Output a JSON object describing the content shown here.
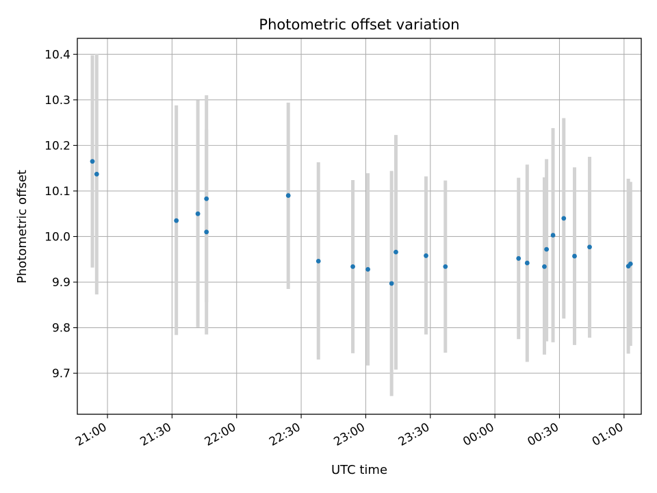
{
  "chart_data": {
    "type": "scatter",
    "title": "Photometric offset variation",
    "xlabel": "UTC time",
    "ylabel": "Photometric offset",
    "x_tick_labels": [
      "21:00",
      "21:30",
      "22:00",
      "22:30",
      "23:00",
      "23:30",
      "00:00",
      "00:30",
      "01:00"
    ],
    "y_ticks": [
      9.7,
      9.8,
      9.9,
      10.0,
      10.1,
      10.2,
      10.3,
      10.4
    ],
    "y_tick_labels": [
      "9.7",
      "9.8",
      "9.9",
      "10.0",
      "10.1",
      "10.2",
      "10.3",
      "10.4"
    ],
    "xlim": [
      "20:46",
      "01:08"
    ],
    "ylim": [
      9.61,
      10.435
    ],
    "grid": true,
    "point_color": "#1f77b4",
    "errorbar_color": "#d3d3d3",
    "points": [
      {
        "x": "20:53",
        "y": 10.165,
        "ylow": 9.932,
        "yhigh": 10.398
      },
      {
        "x": "20:55",
        "y": 10.137,
        "ylow": 9.873,
        "yhigh": 10.401
      },
      {
        "x": "21:32",
        "y": 10.035,
        "ylow": 9.784,
        "yhigh": 10.288
      },
      {
        "x": "21:42",
        "y": 10.05,
        "ylow": 9.801,
        "yhigh": 10.299
      },
      {
        "x": "21:46",
        "y": 10.01,
        "ylow": 9.785,
        "yhigh": 10.235
      },
      {
        "x": "21:46",
        "y": 10.083,
        "ylow": 9.856,
        "yhigh": 10.31
      },
      {
        "x": "22:24",
        "y": 10.09,
        "ylow": 9.885,
        "yhigh": 10.294
      },
      {
        "x": "22:38",
        "y": 9.946,
        "ylow": 9.73,
        "yhigh": 10.163
      },
      {
        "x": "22:54",
        "y": 9.934,
        "ylow": 9.744,
        "yhigh": 10.124
      },
      {
        "x": "23:01",
        "y": 9.928,
        "ylow": 9.717,
        "yhigh": 10.139
      },
      {
        "x": "23:12",
        "y": 9.897,
        "ylow": 9.65,
        "yhigh": 10.144
      },
      {
        "x": "23:14",
        "y": 9.966,
        "ylow": 9.708,
        "yhigh": 10.223
      },
      {
        "x": "23:28",
        "y": 9.958,
        "ylow": 9.785,
        "yhigh": 10.132
      },
      {
        "x": "23:37",
        "y": 9.934,
        "ylow": 9.745,
        "yhigh": 10.123
      },
      {
        "x": "00:11",
        "y": 9.952,
        "ylow": 9.775,
        "yhigh": 10.129
      },
      {
        "x": "00:15",
        "y": 9.942,
        "ylow": 9.725,
        "yhigh": 10.158
      },
      {
        "x": "00:23",
        "y": 9.934,
        "ylow": 9.741,
        "yhigh": 10.13
      },
      {
        "x": "00:24",
        "y": 9.972,
        "ylow": 9.77,
        "yhigh": 10.17
      },
      {
        "x": "00:27",
        "y": 10.003,
        "ylow": 9.768,
        "yhigh": 10.238
      },
      {
        "x": "00:32",
        "y": 10.04,
        "ylow": 9.82,
        "yhigh": 10.26
      },
      {
        "x": "00:37",
        "y": 9.957,
        "ylow": 9.762,
        "yhigh": 10.152
      },
      {
        "x": "00:44",
        "y": 9.977,
        "ylow": 9.778,
        "yhigh": 10.175
      },
      {
        "x": "01:02",
        "y": 9.935,
        "ylow": 9.743,
        "yhigh": 10.127
      },
      {
        "x": "01:03",
        "y": 9.94,
        "ylow": 9.76,
        "yhigh": 10.12
      }
    ]
  }
}
